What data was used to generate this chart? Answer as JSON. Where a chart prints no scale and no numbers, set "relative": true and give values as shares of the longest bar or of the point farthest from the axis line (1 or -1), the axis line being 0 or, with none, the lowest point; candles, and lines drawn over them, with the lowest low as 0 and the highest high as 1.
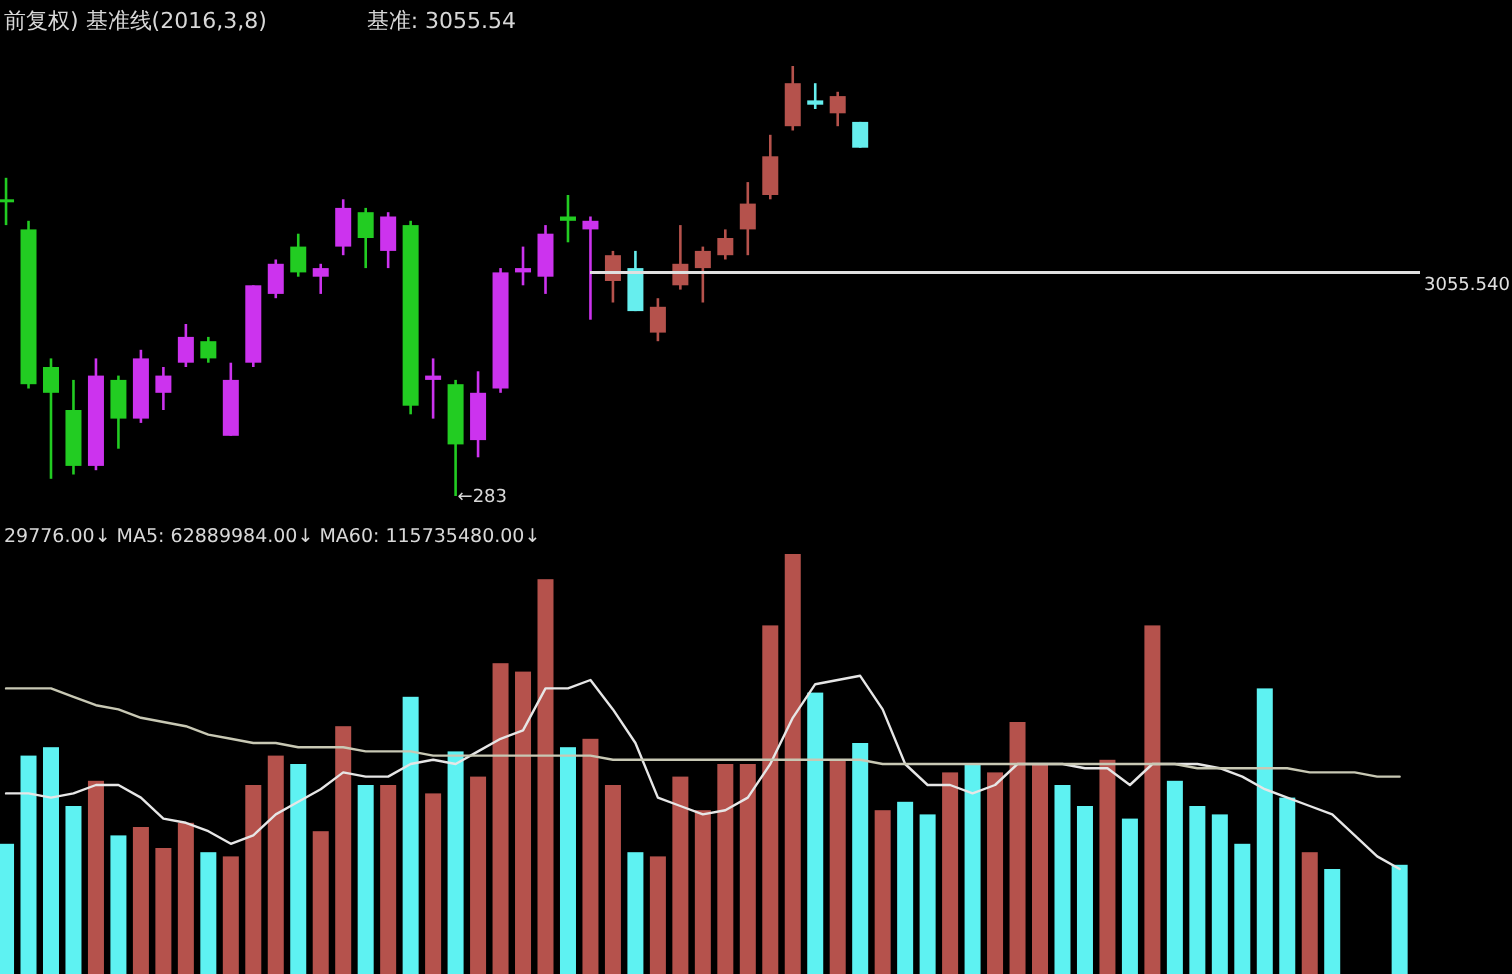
{
  "chart_data": [
    {
      "type": "candlestick",
      "title": "前复权) 基准线(2016,3,8)",
      "annotations": [
        "基准: 3055.54",
        "←283"
      ],
      "categories": [
        null,
        null,
        null,
        null,
        null,
        null,
        null,
        null,
        null,
        null,
        null,
        null,
        null,
        null,
        null,
        null,
        null,
        null,
        null,
        null,
        null,
        null,
        null,
        null,
        null,
        null,
        null,
        null,
        null,
        null,
        null,
        null,
        null,
        null,
        null,
        null,
        null,
        null,
        null,
        null,
        null,
        null,
        null,
        null,
        null,
        null,
        null,
        null,
        null,
        null,
        null,
        null,
        null,
        null,
        null,
        null,
        null,
        null,
        null,
        null,
        null,
        null,
        null,
        null,
        null,
        null,
        null
      ],
      "relative": true,
      "ohlc": [
        [
          0.69,
          0.74,
          0.63,
          0.69
        ],
        [
          0.62,
          0.64,
          0.25,
          0.26
        ],
        [
          0.3,
          0.32,
          0.04,
          0.24
        ],
        [
          0.2,
          0.27,
          0.05,
          0.07
        ],
        [
          0.07,
          0.32,
          0.06,
          0.28
        ],
        [
          0.27,
          0.28,
          0.11,
          0.18
        ],
        [
          0.18,
          0.34,
          0.17,
          0.32
        ],
        [
          0.24,
          0.3,
          0.2,
          0.28
        ],
        [
          0.31,
          0.4,
          0.3,
          0.37
        ],
        [
          0.36,
          0.37,
          0.31,
          0.32
        ],
        [
          0.14,
          0.31,
          0.14,
          0.27
        ],
        [
          0.31,
          0.49,
          0.3,
          0.49
        ],
        [
          0.47,
          0.55,
          0.46,
          0.54
        ],
        [
          0.58,
          0.61,
          0.51,
          0.52
        ],
        [
          0.51,
          0.54,
          0.47,
          0.53
        ],
        [
          0.58,
          0.69,
          0.56,
          0.67
        ],
        [
          0.66,
          0.67,
          0.53,
          0.6
        ],
        [
          0.57,
          0.66,
          0.53,
          0.65
        ],
        [
          0.63,
          0.64,
          0.19,
          0.21
        ],
        [
          0.27,
          0.32,
          0.18,
          0.28
        ],
        [
          0.26,
          0.27,
          0,
          0.12
        ],
        [
          0.13,
          0.29,
          0.09,
          0.24
        ],
        [
          0.25,
          0.53,
          0.24,
          0.52
        ],
        [
          0.52,
          0.58,
          0.49,
          0.53
        ],
        [
          0.51,
          0.63,
          0.47,
          0.61
        ],
        [
          0.65,
          0.7,
          0.59,
          0.64
        ],
        [
          0.62,
          0.65,
          0.41,
          0.64
        ],
        [
          0.5,
          0.57,
          0.45,
          0.56
        ],
        [
          0.53,
          0.57,
          0.43,
          0.43
        ],
        [
          0.38,
          0.46,
          0.36,
          0.44
        ],
        [
          0.49,
          0.63,
          0.48,
          0.54
        ],
        [
          0.53,
          0.58,
          0.45,
          0.57
        ],
        [
          0.56,
          0.62,
          0.55,
          0.6
        ],
        [
          0.62,
          0.73,
          0.56,
          0.68
        ],
        [
          0.7,
          0.84,
          0.69,
          0.79
        ],
        [
          0.86,
          1,
          0.85,
          0.96
        ],
        [
          0.92,
          0.96,
          0.9,
          0.91
        ],
        [
          0.89,
          0.94,
          0.86,
          0.93
        ],
        [
          0.87,
          0.87,
          0.81,
          0.81
        ],
        null,
        null,
        null,
        null,
        null,
        null,
        null,
        null,
        null,
        null,
        null,
        null,
        null,
        null,
        null,
        null,
        null,
        null,
        null,
        null,
        null,
        null,
        null,
        null,
        null,
        null,
        null,
        null
      ],
      "colors": [
        "#22cc22",
        "#22cc22",
        "#22cc22",
        "#22cc22",
        "#cc33ee",
        "#22cc22",
        "#cc33ee",
        "#cc33ee",
        "#cc33ee",
        "#22cc22",
        "#cc33ee",
        "#cc33ee",
        "#cc33ee",
        "#22cc22",
        "#cc33ee",
        "#cc33ee",
        "#22cc22",
        "#cc33ee",
        "#22cc22",
        "#cc33ee",
        "#22cc22",
        "#cc33ee",
        "#cc33ee",
        "#cc33ee",
        "#cc33ee",
        "#22cc22",
        "#cc33ee",
        "#b5524c",
        "#66eeee",
        "#b5524c",
        "#b5524c",
        "#b5524c",
        "#b5524c",
        "#b5524c",
        "#b5524c",
        "#b5524c",
        "#66eeee",
        "#b5524c",
        "#66eeee",
        null,
        null,
        null,
        null,
        null,
        null,
        null,
        null,
        null,
        null,
        null,
        null,
        null,
        null,
        null,
        null,
        null,
        null,
        null,
        null,
        null,
        null,
        null,
        null,
        null,
        null,
        null,
        null
      ],
      "ref_lines": [
        {
          "axis": "y",
          "value": 0.52,
          "color": "#e0e0e0"
        }
      ],
      "y2label": "3055.540"
    },
    {
      "type": "bar",
      "subtitle": "29776.00↓ MA5: 62889984.00↓ MA60: 115735480.00↓",
      "categories": [
        null,
        null,
        null,
        null,
        null,
        null,
        null,
        null,
        null,
        null,
        null,
        null,
        null,
        null,
        null,
        null,
        null,
        null,
        null,
        null,
        null,
        null,
        null,
        null,
        null,
        null,
        null,
        null,
        null,
        null,
        null,
        null,
        null,
        null,
        null,
        null,
        null,
        null,
        null,
        null,
        null,
        null,
        null,
        null,
        null,
        null,
        null,
        null,
        null,
        null,
        null,
        null,
        null,
        null,
        null,
        null,
        null,
        null,
        null,
        null,
        null,
        null,
        null,
        null,
        null,
        null,
        null
      ],
      "relative": true,
      "series": [
        {
          "type": "bar",
          "values": [
            0.31,
            0.52,
            0.54,
            0.4,
            0.46,
            0.33,
            0.35,
            0.3,
            0.36,
            0.29,
            0.28,
            0.45,
            0.52,
            0.5,
            0.34,
            0.59,
            0.45,
            0.45,
            0.66,
            0.43,
            0.53,
            0.47,
            0.74,
            0.72,
            0.94,
            0.54,
            0.56,
            0.45,
            0.29,
            0.28,
            0.47,
            0.39,
            0.5,
            0.5,
            0.83,
            1,
            0.67,
            0.51,
            0.55,
            0.39,
            0.41,
            0.38,
            0.48,
            0.5,
            0.48,
            0.6,
            0.5,
            0.45,
            0.4,
            0.51,
            0.37,
            0.83,
            0.46,
            0.4,
            0.38,
            0.31,
            0.68,
            0.42,
            0.29,
            0.25,
            null,
            null,
            0.26,
            null,
            null,
            null,
            null
          ],
          "colors": [
            "#5ef2f2",
            "#5ef2f2",
            "#5ef2f2",
            "#5ef2f2",
            "#b5524c",
            "#5ef2f2",
            "#b5524c",
            "#b5524c",
            "#b5524c",
            "#5ef2f2",
            "#b5524c",
            "#b5524c",
            "#b5524c",
            "#5ef2f2",
            "#b5524c",
            "#b5524c",
            "#5ef2f2",
            "#b5524c",
            "#5ef2f2",
            "#b5524c",
            "#5ef2f2",
            "#b5524c",
            "#b5524c",
            "#b5524c",
            "#b5524c",
            "#5ef2f2",
            "#b5524c",
            "#b5524c",
            "#5ef2f2",
            "#b5524c",
            "#b5524c",
            "#b5524c",
            "#b5524c",
            "#b5524c",
            "#b5524c",
            "#b5524c",
            "#5ef2f2",
            "#b5524c",
            "#5ef2f2",
            "#b5524c",
            "#5ef2f2",
            "#5ef2f2",
            "#b5524c",
            "#5ef2f2",
            "#b5524c",
            "#b5524c",
            "#b5524c",
            "#5ef2f2",
            "#5ef2f2",
            "#b5524c",
            "#5ef2f2",
            "#b5524c",
            "#5ef2f2",
            "#5ef2f2",
            "#5ef2f2",
            "#5ef2f2",
            "#5ef2f2",
            "#5ef2f2",
            "#b5524c",
            "#5ef2f2",
            null,
            null,
            "#5ef2f2",
            null,
            null,
            null,
            null
          ]
        },
        {
          "type": "line",
          "color": "#e6e6e6",
          "values": [
            0.43,
            0.43,
            0.42,
            0.43,
            0.45,
            0.45,
            0.42,
            0.37,
            0.36,
            0.34,
            0.31,
            0.33,
            0.38,
            0.41,
            0.44,
            0.48,
            0.47,
            0.47,
            0.5,
            0.51,
            0.5,
            0.53,
            0.56,
            0.58,
            0.68,
            0.68,
            0.7,
            0.63,
            0.55,
            0.42,
            0.4,
            0.38,
            0.39,
            0.42,
            0.5,
            0.61,
            0.69,
            0.7,
            0.71,
            0.63,
            0.5,
            0.45,
            0.45,
            0.43,
            0.45,
            0.5,
            0.5,
            0.5,
            0.49,
            0.49,
            0.45,
            0.5,
            0.5,
            0.5,
            0.49,
            0.47,
            0.44,
            0.42,
            0.4,
            0.38,
            0.33,
            0.28,
            0.25,
            null,
            null,
            null,
            null
          ]
        },
        {
          "type": "line",
          "color": "#c8c8b4",
          "values": [
            0.68,
            0.68,
            0.68,
            0.66,
            0.64,
            0.63,
            0.61,
            0.6,
            0.59,
            0.57,
            0.56,
            0.55,
            0.55,
            0.54,
            0.54,
            0.54,
            0.53,
            0.53,
            0.53,
            0.52,
            0.52,
            0.52,
            0.52,
            0.52,
            0.52,
            0.52,
            0.52,
            0.51,
            0.51,
            0.51,
            0.51,
            0.51,
            0.51,
            0.51,
            0.51,
            0.51,
            0.51,
            0.51,
            0.51,
            0.5,
            0.5,
            0.5,
            0.5,
            0.5,
            0.5,
            0.5,
            0.5,
            0.5,
            0.5,
            0.5,
            0.5,
            0.5,
            0.5,
            0.49,
            0.49,
            0.49,
            0.49,
            0.49,
            0.48,
            0.48,
            0.48,
            0.47,
            0.47,
            null,
            null,
            null,
            null
          ]
        }
      ]
    }
  ]
}
